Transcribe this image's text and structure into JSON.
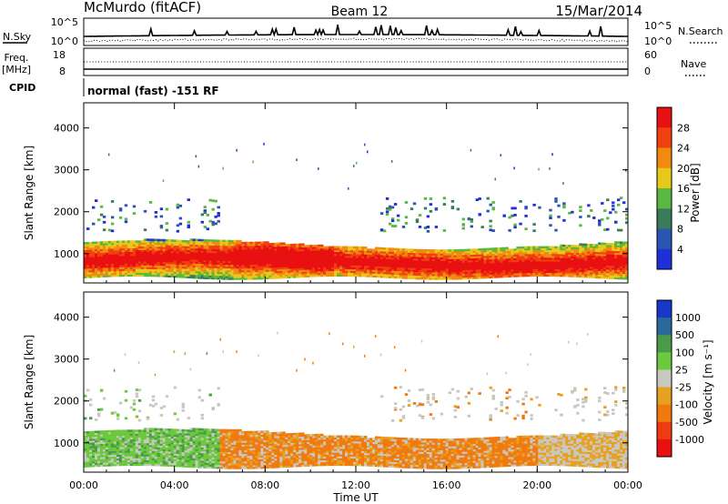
{
  "header": {
    "station": "McMurdo (fitACF)",
    "beam": "Beam 12",
    "date": "15/Mar/2014"
  },
  "noise_panel": {
    "left_label": "N.Sky",
    "right_label": "N.Search",
    "left_ticks": [
      "10^5",
      "10^0"
    ],
    "right_ticks": [
      "10^5",
      "10^0"
    ]
  },
  "freq_panel": {
    "left_label_1": "Freq.",
    "left_label_2": "[MHz]",
    "right_label": "Nave",
    "left_ticks": [
      "18",
      "8"
    ],
    "right_ticks": [
      "60",
      "0"
    ]
  },
  "cpid_panel": {
    "label": "CPID",
    "text": "normal (fast) -151 RF"
  },
  "colors": {
    "power_scale": [
      "#2030d8",
      "#2a55b0",
      "#3a7c5a",
      "#58b840",
      "#e8c81a",
      "#f08a10",
      "#f04010",
      "#e81010"
    ],
    "velocity_scale": [
      "#1838c8",
      "#2a6a9a",
      "#4a9a4a",
      "#6cc83c",
      "#c8c8c0",
      "#e8a020",
      "#f07a10",
      "#f03a10",
      "#e81010"
    ]
  },
  "chart_data": [
    {
      "type": "heatmap",
      "name": "power",
      "ylabel": "Slant Range [km]",
      "xlabel": "Time UT",
      "x_ticks": [
        "00:00",
        "04:00",
        "08:00",
        "12:00",
        "16:00",
        "20:00",
        "00:00"
      ],
      "y_ticks": [
        "1000",
        "2000",
        "3000",
        "4000"
      ],
      "ylim": [
        300,
        4600
      ],
      "xlim_hours": [
        0,
        24
      ],
      "colorbar_label": "Power [dB]",
      "colorbar_ticks": [
        "4",
        "8",
        "12",
        "16",
        "20",
        "24",
        "28"
      ],
      "scatter_band_km": [
        [
          550,
          1250
        ],
        [
          1500,
          2300
        ]
      ]
    },
    {
      "type": "heatmap",
      "name": "velocity",
      "ylabel": "Slant Range [km]",
      "xlabel": "Time UT",
      "x_ticks": [
        "00:00",
        "04:00",
        "08:00",
        "12:00",
        "16:00",
        "20:00",
        "00:00"
      ],
      "y_ticks": [
        "1000",
        "2000",
        "3000",
        "4000"
      ],
      "ylim": [
        300,
        4600
      ],
      "xlim_hours": [
        0,
        24
      ],
      "colorbar_label": "Velocity [m s⁻¹]",
      "colorbar_ticks": [
        "1000",
        "500",
        "100",
        "25",
        "-25",
        "-100",
        "-500",
        "-1000"
      ]
    }
  ]
}
